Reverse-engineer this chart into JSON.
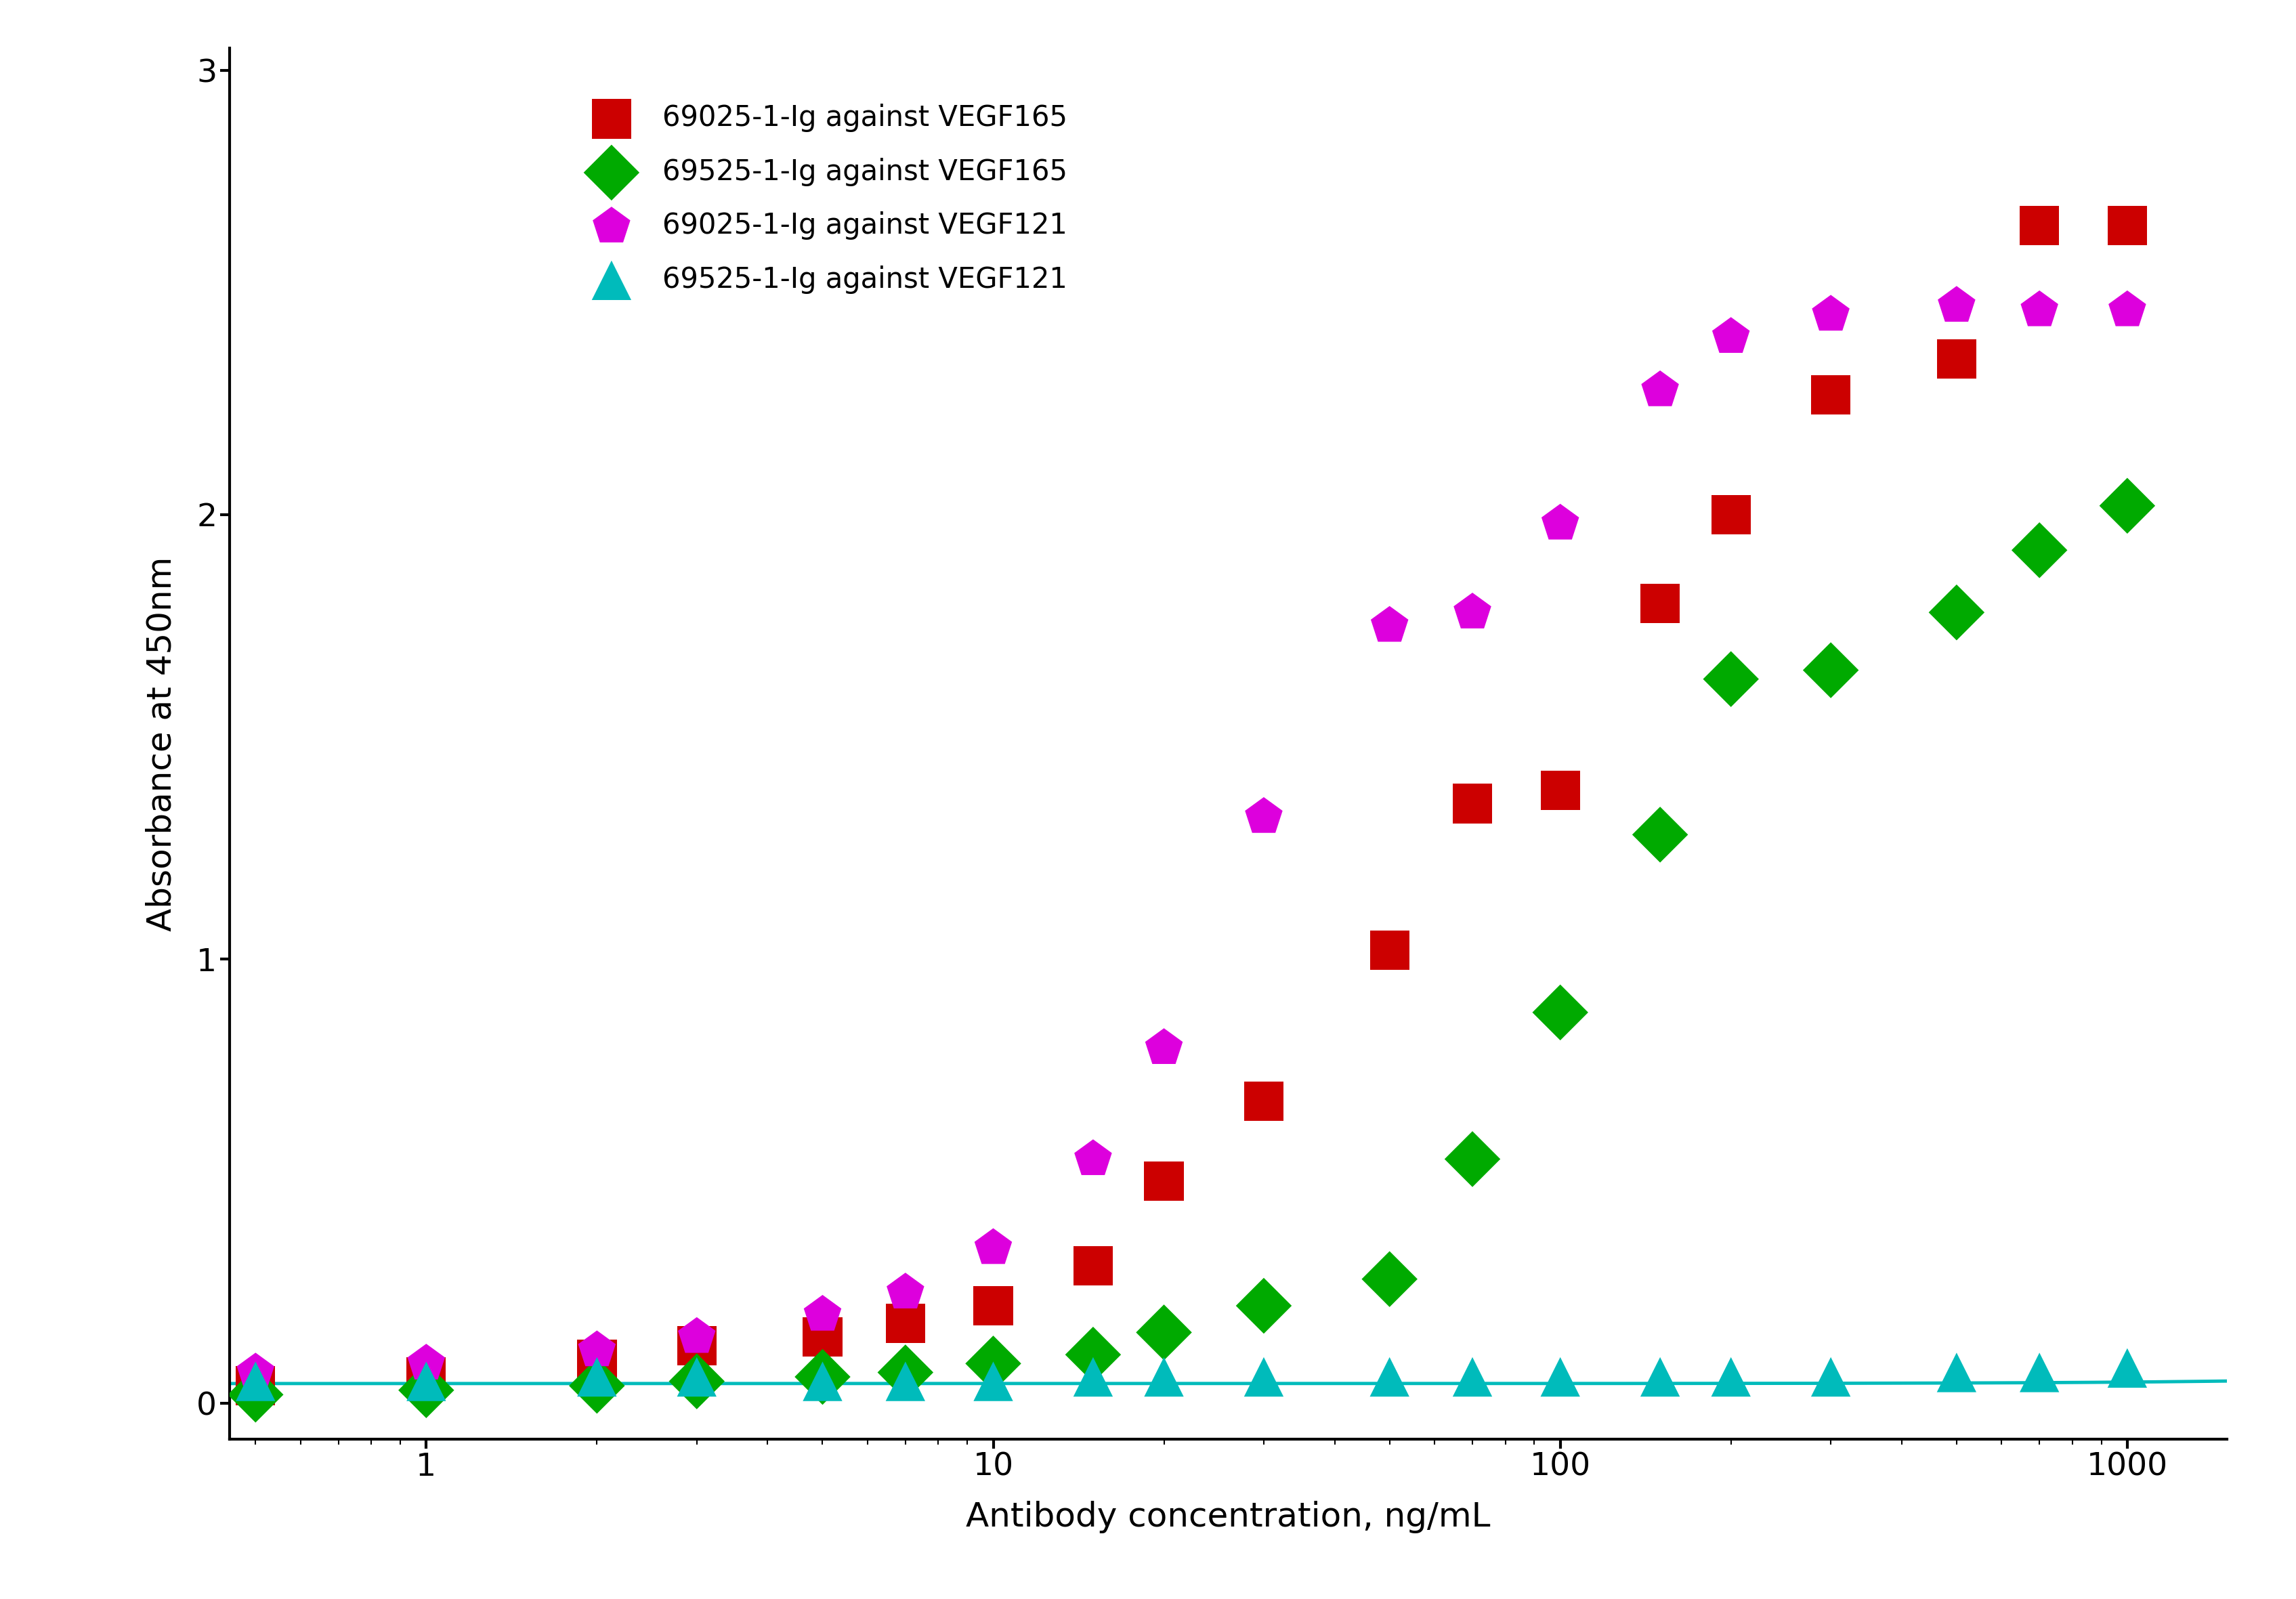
{
  "series": [
    {
      "label": "69025-1-Ig against VEGF165",
      "color": "#cc0000",
      "marker": "s",
      "x": [
        0.5,
        1.0,
        2.0,
        3.0,
        5.0,
        7.0,
        10.0,
        15.0,
        20.0,
        30.0,
        50.0,
        70.0,
        100.0,
        150.0,
        200.0,
        300.0,
        500.0,
        700.0,
        1000.0
      ],
      "y": [
        0.04,
        0.06,
        0.1,
        0.13,
        0.15,
        0.18,
        0.22,
        0.31,
        0.5,
        0.68,
        1.02,
        1.35,
        1.38,
        1.8,
        2.0,
        2.27,
        2.35,
        2.65,
        2.65
      ]
    },
    {
      "label": "69525-1-Ig against VEGF165",
      "color": "#00aa00",
      "marker": "D",
      "x": [
        0.5,
        1.0,
        2.0,
        3.0,
        5.0,
        7.0,
        10.0,
        15.0,
        20.0,
        30.0,
        50.0,
        70.0,
        100.0,
        150.0,
        200.0,
        300.0,
        500.0,
        700.0,
        1000.0
      ],
      "y": [
        0.02,
        0.03,
        0.04,
        0.05,
        0.06,
        0.07,
        0.09,
        0.11,
        0.16,
        0.22,
        0.28,
        0.55,
        0.88,
        1.28,
        1.63,
        1.65,
        1.78,
        1.92,
        2.02
      ]
    },
    {
      "label": "69025-1-Ig against VEGF121",
      "color": "#dd00dd",
      "marker": "p",
      "x": [
        0.5,
        1.0,
        2.0,
        3.0,
        5.0,
        7.0,
        10.0,
        15.0,
        20.0,
        30.0,
        50.0,
        70.0,
        100.0,
        150.0,
        200.0,
        300.0,
        500.0,
        700.0,
        1000.0
      ],
      "y": [
        0.07,
        0.09,
        0.12,
        0.15,
        0.2,
        0.25,
        0.35,
        0.55,
        0.8,
        1.32,
        1.75,
        1.78,
        1.98,
        2.28,
        2.4,
        2.45,
        2.47,
        2.46,
        2.46
      ]
    },
    {
      "label": "69525-1-Ig against VEGF121",
      "color": "#00bbbb",
      "marker": "^",
      "x": [
        0.5,
        1.0,
        2.0,
        3.0,
        5.0,
        7.0,
        10.0,
        15.0,
        20.0,
        30.0,
        50.0,
        70.0,
        100.0,
        150.0,
        200.0,
        300.0,
        500.0,
        700.0,
        1000.0
      ],
      "y": [
        0.05,
        0.05,
        0.06,
        0.06,
        0.05,
        0.05,
        0.05,
        0.06,
        0.06,
        0.06,
        0.06,
        0.06,
        0.06,
        0.06,
        0.06,
        0.06,
        0.07,
        0.07,
        0.08
      ]
    }
  ],
  "xlim": [
    0.45,
    1500
  ],
  "ylim": [
    -0.08,
    3.05
  ],
  "yticks": [
    0,
    1,
    2,
    3
  ],
  "xlabel": "Antibody concentration, ng/mL",
  "ylabel": "Absorbance at 450nm",
  "background_color": "#ffffff",
  "axis_fontsize": 36,
  "tick_fontsize": 34,
  "legend_fontsize": 30,
  "linewidth": 3.5,
  "markersize": 14
}
